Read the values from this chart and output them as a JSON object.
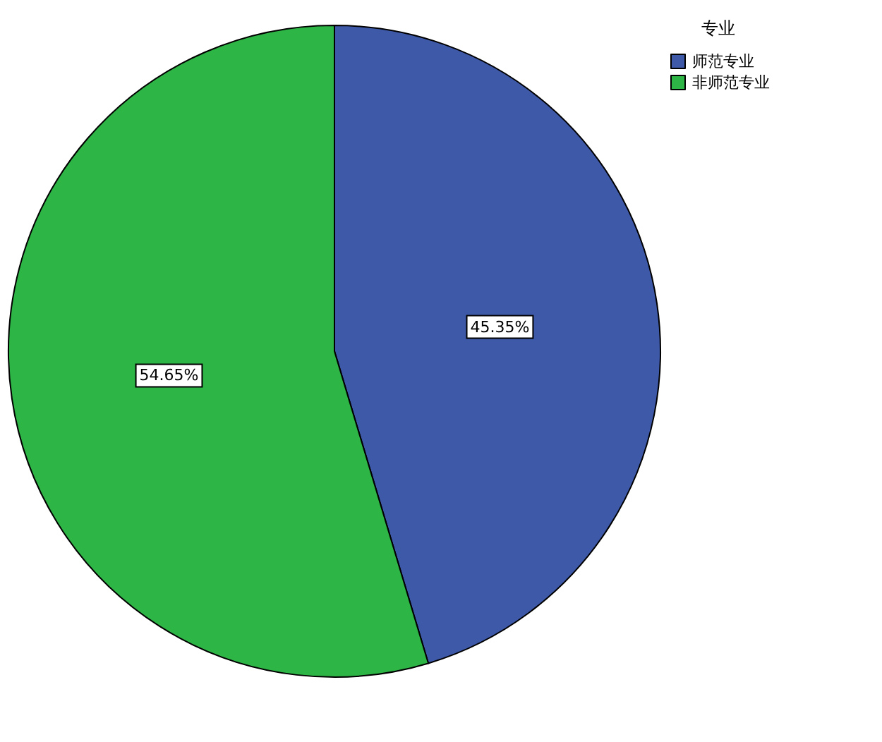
{
  "chart_data": {
    "type": "pie",
    "legend_title": "专业",
    "categories": [
      "师范专业",
      "非师范专业"
    ],
    "values": [
      45.35,
      54.65
    ],
    "colors": [
      "#3f59a9",
      "#2db546"
    ],
    "value_labels": [
      "45.35%",
      "54.65%"
    ],
    "legend": "top right"
  }
}
